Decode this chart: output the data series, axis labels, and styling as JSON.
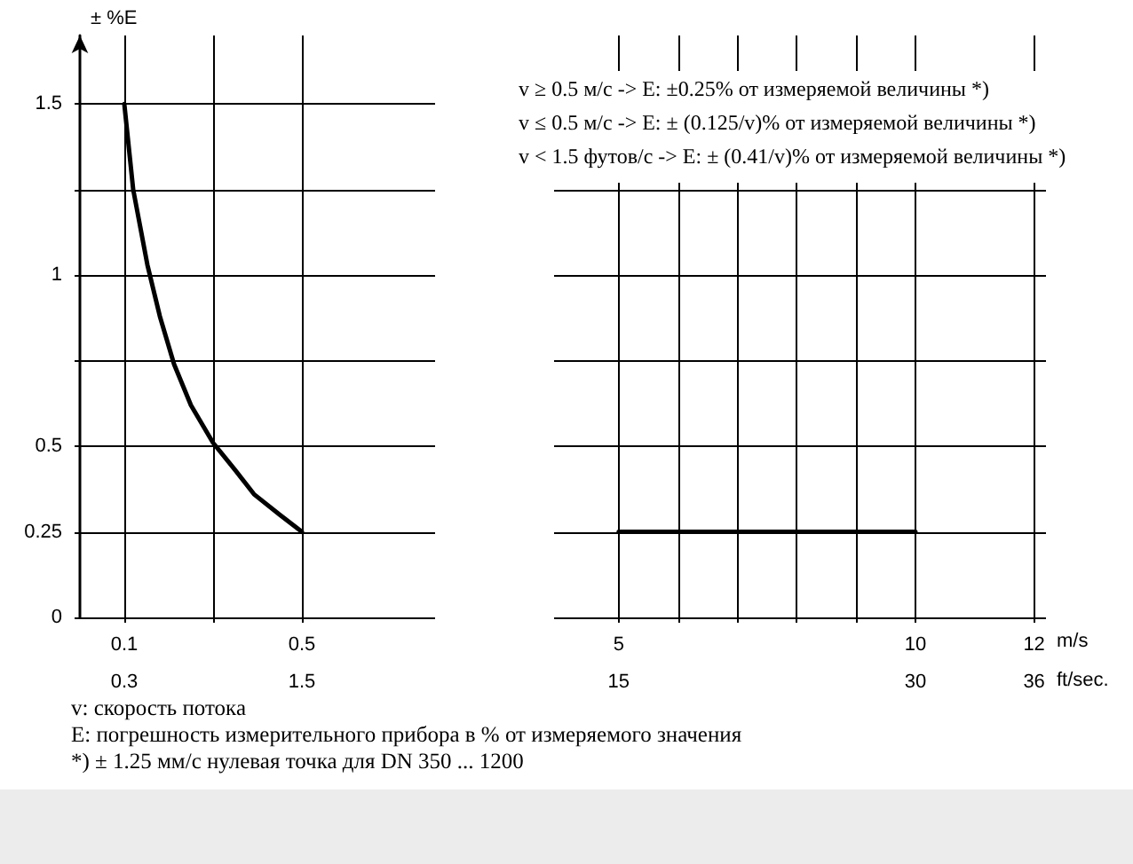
{
  "chart_data": [
    {
      "type": "line",
      "ylabel": "± %E",
      "series": [
        {
          "color": "#000000",
          "x": [
            0.1,
            0.12,
            0.152,
            0.18,
            0.212,
            0.25,
            0.3,
            0.35,
            0.392,
            0.45,
            0.5
          ],
          "values": [
            1.5,
            1.25,
            1.03,
            0.88,
            0.74,
            0.62,
            0.51,
            0.43,
            0.36,
            0.3,
            0.25
          ]
        }
      ],
      "xlim": [
        0,
        0.8
      ],
      "xticks": [
        0.1,
        {
          "value": 0.3,
          "label": null
        },
        0.5
      ],
      "x2lim": [
        0,
        2.4
      ],
      "x2ticks": [
        0.3,
        1.5
      ],
      "ylim": [
        0,
        1.7
      ],
      "yticks": [
        0,
        0.25,
        0.5,
        {
          "value": 0.75,
          "label": null
        },
        1,
        {
          "value": 1.25,
          "label": null
        },
        1.5
      ],
      "grid": true,
      "marker": "none",
      "line_style": "solid",
      "annotations": [
        "v: скорость потока",
        "E: погрешность измерительного прибора в % от измеряемого значения",
        "*) ± 1.25 мм/с нулевая точка для DN 350 ... 1200"
      ]
    },
    {
      "type": "line",
      "xlabel": "m/s",
      "x2label": "ft/sec.",
      "series": [
        {
          "color": "#000000",
          "x": [
            5,
            10
          ],
          "values": [
            0.25,
            0.25
          ]
        }
      ],
      "xlim": [
        4,
        12.2
      ],
      "xticks": [
        5,
        {
          "value": 6,
          "label": null
        },
        {
          "value": 7,
          "label": null
        },
        {
          "value": 8,
          "label": null
        },
        {
          "value": 9,
          "label": null
        },
        10,
        12
      ],
      "x2lim": [
        12,
        36.6
      ],
      "x2ticks": [
        15,
        30,
        36
      ],
      "ylim": [
        0,
        1.7
      ],
      "yticks": [
        0,
        0.25,
        0.5,
        0.75,
        1,
        1.25,
        1.5
      ],
      "tick_labels": "x",
      "grid": true,
      "marker": "none",
      "line_style": "solid",
      "annotations": [
        "v ≥ 0.5 м/с -> E: ±0.25% от измеряемой величины *)",
        "v ≤ 0.5 м/с -> E: ± (0.125/v)% от измеряемой величины *)",
        "v < 1.5 футов/с -> E: ± (0.41/v)% от измеряемой величины *)"
      ]
    }
  ]
}
